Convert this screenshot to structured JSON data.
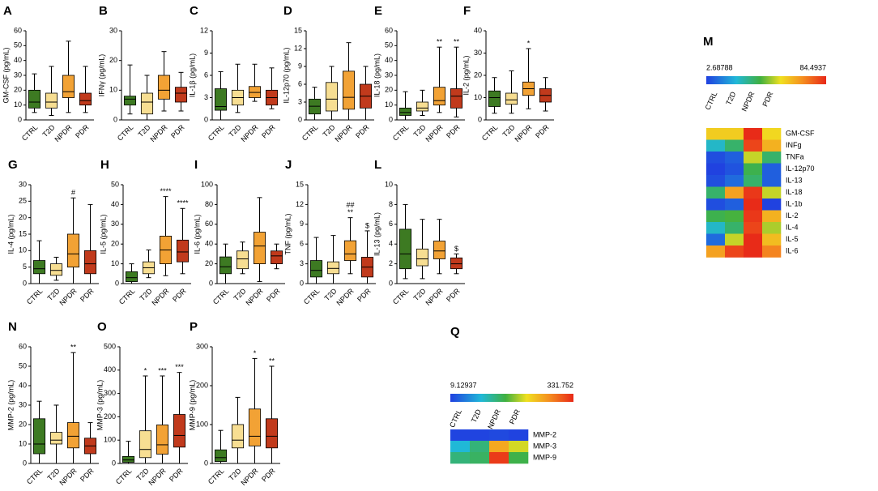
{
  "chart_data": [
    {
      "type": "box",
      "label": "A",
      "ylabel": "GM-CSF (pg/mL)",
      "categories": [
        "CTRL",
        "T2D",
        "NPDR",
        "PDR"
      ],
      "colors": [
        "#3d7a22",
        "#f7de92",
        "#f2a235",
        "#c13a1c"
      ],
      "ylim": [
        0,
        60
      ],
      "yticks": [
        0,
        10,
        20,
        30,
        40,
        50,
        60
      ],
      "boxes": [
        {
          "min": 5,
          "q1": 8,
          "median": 12,
          "q3": 20,
          "max": 31
        },
        {
          "min": 3,
          "q1": 8,
          "median": 12,
          "q3": 18,
          "max": 36
        },
        {
          "min": 5,
          "q1": 15,
          "median": 19,
          "q3": 30,
          "max": 53
        },
        {
          "min": 5,
          "q1": 10,
          "median": 13,
          "q3": 18,
          "max": 36
        }
      ],
      "annotations": [
        null,
        null,
        null,
        null
      ]
    },
    {
      "type": "box",
      "label": "B",
      "ylabel": "IFNγ (pg/mL)",
      "categories": [
        "CTRL",
        "T2D",
        "NPDR",
        "PDR"
      ],
      "colors": [
        "#3d7a22",
        "#f7de92",
        "#f2a235",
        "#c13a1c"
      ],
      "ylim": [
        0,
        30
      ],
      "yticks": [
        0,
        10,
        20,
        30
      ],
      "boxes": [
        {
          "min": 2,
          "q1": 5,
          "median": 7,
          "q3": 8,
          "max": 18.5
        },
        {
          "min": 0,
          "q1": 2,
          "median": 6,
          "q3": 9,
          "max": 15
        },
        {
          "min": 3,
          "q1": 7,
          "median": 10,
          "q3": 15,
          "max": 23
        },
        {
          "min": 3,
          "q1": 6,
          "median": 9,
          "q3": 11,
          "max": 16
        }
      ],
      "annotations": [
        null,
        null,
        null,
        null
      ]
    },
    {
      "type": "box",
      "label": "C",
      "ylabel": "IL-1β (pg/mL)",
      "categories": [
        "CTRL",
        "T2D",
        "NPDR",
        "PDR"
      ],
      "colors": [
        "#3d7a22",
        "#f7de92",
        "#f2a235",
        "#c13a1c"
      ],
      "ylim": [
        0,
        12
      ],
      "yticks": [
        0,
        3,
        6,
        9,
        12
      ],
      "boxes": [
        {
          "min": 0,
          "q1": 1.3,
          "median": 1.8,
          "q3": 4.2,
          "max": 6.5
        },
        {
          "min": 1,
          "q1": 2,
          "median": 3,
          "q3": 4,
          "max": 7.5
        },
        {
          "min": 2.5,
          "q1": 3,
          "median": 3.7,
          "q3": 4.5,
          "max": 7.5
        },
        {
          "min": 1.5,
          "q1": 2,
          "median": 3,
          "q3": 4,
          "max": 7
        }
      ],
      "annotations": [
        null,
        null,
        null,
        null
      ]
    },
    {
      "type": "box",
      "label": "D",
      "ylabel": "IL-12p70 (pg/mL)",
      "categories": [
        "CTRL",
        "T2D",
        "NPDR",
        "PDR"
      ],
      "colors": [
        "#3d7a22",
        "#f7de92",
        "#f2a235",
        "#c13a1c"
      ],
      "ylim": [
        0,
        15
      ],
      "yticks": [
        0,
        3,
        6,
        9,
        12,
        15
      ],
      "boxes": [
        {
          "min": 0,
          "q1": 1,
          "median": 2.3,
          "q3": 3.5,
          "max": 5.5
        },
        {
          "min": 0,
          "q1": 1.5,
          "median": 3.5,
          "q3": 6.3,
          "max": 9
        },
        {
          "min": 0,
          "q1": 1.8,
          "median": 3.8,
          "q3": 8.2,
          "max": 13
        },
        {
          "min": 0,
          "q1": 2,
          "median": 4,
          "q3": 6,
          "max": 9
        }
      ],
      "annotations": [
        null,
        null,
        null,
        null
      ]
    },
    {
      "type": "box",
      "label": "E",
      "ylabel": "IL-18 (pg/mL)",
      "categories": [
        "CTRL",
        "T2D",
        "NPDR",
        "PDR"
      ],
      "colors": [
        "#3d7a22",
        "#f7de92",
        "#f2a235",
        "#c13a1c"
      ],
      "ylim": [
        0,
        60
      ],
      "yticks": [
        0,
        10,
        20,
        30,
        40,
        50,
        60
      ],
      "boxes": [
        {
          "min": 0,
          "q1": 3,
          "median": 5,
          "q3": 8,
          "max": 19
        },
        {
          "min": 3,
          "q1": 6,
          "median": 8,
          "q3": 12,
          "max": 20
        },
        {
          "min": 5,
          "q1": 10,
          "median": 13,
          "q3": 22,
          "max": 49
        },
        {
          "min": 2,
          "q1": 8,
          "median": 16,
          "q3": 21,
          "max": 49
        }
      ],
      "annotations": [
        null,
        null,
        "**",
        "**"
      ]
    },
    {
      "type": "box",
      "label": "F",
      "ylabel": "IL-2 (pg/mL)",
      "categories": [
        "CTRL",
        "T2D",
        "NPDR",
        "PDR"
      ],
      "colors": [
        "#3d7a22",
        "#f7de92",
        "#f2a235",
        "#c13a1c"
      ],
      "ylim": [
        0,
        40
      ],
      "yticks": [
        0,
        10,
        20,
        30,
        40
      ],
      "boxes": [
        {
          "min": 3,
          "q1": 6,
          "median": 10,
          "q3": 13,
          "max": 19
        },
        {
          "min": 3,
          "q1": 7,
          "median": 9,
          "q3": 12,
          "max": 22
        },
        {
          "min": 5,
          "q1": 11,
          "median": 14,
          "q3": 17,
          "max": 32
        },
        {
          "min": 4,
          "q1": 8,
          "median": 11,
          "q3": 14,
          "max": 19
        }
      ],
      "annotations": [
        null,
        null,
        "*",
        null
      ]
    },
    {
      "type": "box",
      "label": "G",
      "ylabel": "IL-4 (pg/mL)",
      "categories": [
        "CTRL",
        "T2D",
        "NPDR",
        "PDR"
      ],
      "colors": [
        "#3d7a22",
        "#f7de92",
        "#f2a235",
        "#c13a1c"
      ],
      "ylim": [
        0,
        30
      ],
      "yticks": [
        0,
        5,
        10,
        15,
        20,
        25,
        30
      ],
      "boxes": [
        {
          "min": 0,
          "q1": 3,
          "median": 4.5,
          "q3": 7,
          "max": 13
        },
        {
          "min": 1,
          "q1": 2.5,
          "median": 4,
          "q3": 6,
          "max": 8
        },
        {
          "min": 0,
          "q1": 5,
          "median": 9,
          "q3": 15,
          "max": 26
        },
        {
          "min": 0,
          "q1": 3,
          "median": 6,
          "q3": 10,
          "max": 24
        }
      ],
      "annotations": [
        null,
        null,
        "#",
        null
      ]
    },
    {
      "type": "box",
      "label": "H",
      "ylabel": "IL-5 (pg/mL)",
      "categories": [
        "CTRL",
        "T2D",
        "NPDR",
        "PDR"
      ],
      "colors": [
        "#3d7a22",
        "#f7de92",
        "#f2a235",
        "#c13a1c"
      ],
      "ylim": [
        0,
        50
      ],
      "yticks": [
        0,
        10,
        20,
        30,
        40,
        50
      ],
      "boxes": [
        {
          "min": 0,
          "q1": 1,
          "median": 3,
          "q3": 6,
          "max": 10
        },
        {
          "min": 3,
          "q1": 5,
          "median": 8,
          "q3": 11,
          "max": 17
        },
        {
          "min": 4,
          "q1": 10,
          "median": 17,
          "q3": 24,
          "max": 44
        },
        {
          "min": 5,
          "q1": 11,
          "median": 16,
          "q3": 22,
          "max": 38
        }
      ],
      "annotations": [
        null,
        null,
        "****",
        "****"
      ]
    },
    {
      "type": "box",
      "label": "I",
      "ylabel": "IL-6 (pg/mL)",
      "categories": [
        "CTRL",
        "T2D",
        "NPDR",
        "PDR"
      ],
      "colors": [
        "#3d7a22",
        "#f7de92",
        "#f2a235",
        "#c13a1c"
      ],
      "ylim": [
        0,
        100
      ],
      "yticks": [
        0,
        20,
        40,
        60,
        80,
        100
      ],
      "boxes": [
        {
          "min": 0,
          "q1": 10,
          "median": 17,
          "q3": 27,
          "max": 40
        },
        {
          "min": 10,
          "q1": 15,
          "median": 25,
          "q3": 33,
          "max": 42
        },
        {
          "min": 2,
          "q1": 20,
          "median": 38,
          "q3": 52,
          "max": 87
        },
        {
          "min": 15,
          "q1": 20,
          "median": 28,
          "q3": 33,
          "max": 40
        }
      ],
      "annotations": [
        null,
        null,
        null,
        null
      ]
    },
    {
      "type": "box",
      "label": "J",
      "ylabel": "TNF (pg/mL)",
      "categories": [
        "CTRL",
        "T2D",
        "NPDR",
        "PDR"
      ],
      "colors": [
        "#3d7a22",
        "#f7de92",
        "#f2a235",
        "#c13a1c"
      ],
      "ylim": [
        0,
        15
      ],
      "yticks": [
        0,
        3,
        6,
        9,
        12,
        15
      ],
      "boxes": [
        {
          "min": 0,
          "q1": 1,
          "median": 2,
          "q3": 3.5,
          "max": 7
        },
        {
          "min": 0,
          "q1": 1.5,
          "median": 2.3,
          "q3": 3.3,
          "max": 7.3
        },
        {
          "min": 1.5,
          "q1": 3.5,
          "median": 4.5,
          "q3": 6.5,
          "max": 10
        },
        {
          "min": 0,
          "q1": 1,
          "median": 2.5,
          "q3": 4,
          "max": 8
        }
      ],
      "annotations": [
        null,
        null,
        "**",
        "$"
      ],
      "annotations_top": [
        null,
        null,
        "##",
        null
      ]
    },
    {
      "type": "box",
      "label": "L",
      "ylabel": "IL-13 (pg/mL)",
      "categories": [
        "CTRL",
        "T2D",
        "NPDR",
        "PDR"
      ],
      "colors": [
        "#3d7a22",
        "#f7de92",
        "#f2a235",
        "#c13a1c"
      ],
      "ylim": [
        0,
        10
      ],
      "yticks": [
        0,
        2,
        4,
        6,
        8,
        10
      ],
      "boxes": [
        {
          "min": 0.5,
          "q1": 1.5,
          "median": 3,
          "q3": 5.5,
          "max": 8
        },
        {
          "min": 0.5,
          "q1": 1.8,
          "median": 2.5,
          "q3": 3.5,
          "max": 6.5
        },
        {
          "min": 1,
          "q1": 2.5,
          "median": 3.3,
          "q3": 4.3,
          "max": 6.5
        },
        {
          "min": 1,
          "q1": 1.5,
          "median": 2,
          "q3": 2.6,
          "max": 3
        }
      ],
      "annotations": [
        null,
        null,
        null,
        "$"
      ]
    },
    {
      "type": "box",
      "label": "N",
      "ylabel": "MMP-2 (pg/mL)",
      "categories": [
        "CTRL",
        "T2D",
        "NPDR",
        "PDR"
      ],
      "colors": [
        "#3d7a22",
        "#f7de92",
        "#f2a235",
        "#c13a1c"
      ],
      "ylim": [
        0,
        60
      ],
      "yticks": [
        0,
        10,
        20,
        30,
        40,
        50,
        60
      ],
      "boxes": [
        {
          "min": 0,
          "q1": 5,
          "median": 10,
          "q3": 23,
          "max": 32
        },
        {
          "min": 0,
          "q1": 10,
          "median": 12,
          "q3": 16,
          "max": 30
        },
        {
          "min": 0,
          "q1": 8,
          "median": 14,
          "q3": 21,
          "max": 57
        },
        {
          "min": 0,
          "q1": 5,
          "median": 9,
          "q3": 13,
          "max": 21
        }
      ],
      "annotations": [
        null,
        null,
        "**",
        null
      ]
    },
    {
      "type": "box",
      "label": "O",
      "ylabel": "MMP-3 (pg/mL)",
      "categories": [
        "CTRL",
        "T2D",
        "NPDR",
        "PDR"
      ],
      "colors": [
        "#3d7a22",
        "#f7de92",
        "#f2a235",
        "#c13a1c"
      ],
      "ylim": [
        0,
        500
      ],
      "yticks": [
        0,
        100,
        200,
        300,
        400,
        500
      ],
      "boxes": [
        {
          "min": 0,
          "q1": 5,
          "median": 15,
          "q3": 30,
          "max": 95
        },
        {
          "min": 0,
          "q1": 25,
          "median": 60,
          "q3": 140,
          "max": 375
        },
        {
          "min": 0,
          "q1": 40,
          "median": 80,
          "q3": 165,
          "max": 375
        },
        {
          "min": 0,
          "q1": 70,
          "median": 120,
          "q3": 210,
          "max": 390
        }
      ],
      "annotations": [
        null,
        "*",
        "***",
        "***"
      ]
    },
    {
      "type": "box",
      "label": "P",
      "ylabel": "MMP-9 (pg/mL)",
      "categories": [
        "CTRL",
        "T2D",
        "NPDR",
        "PDR"
      ],
      "colors": [
        "#3d7a22",
        "#f7de92",
        "#f2a235",
        "#c13a1c"
      ],
      "ylim": [
        0,
        300
      ],
      "yticks": [
        0,
        100,
        200,
        300
      ],
      "boxes": [
        {
          "min": 0,
          "q1": 5,
          "median": 15,
          "q3": 35,
          "max": 85
        },
        {
          "min": 0,
          "q1": 40,
          "median": 60,
          "q3": 100,
          "max": 170
        },
        {
          "min": 0,
          "q1": 45,
          "median": 70,
          "q3": 140,
          "max": 270
        },
        {
          "min": 0,
          "q1": 40,
          "median": 70,
          "q3": 115,
          "max": 250
        }
      ],
      "annotations": [
        null,
        null,
        "*",
        "**"
      ]
    },
    {
      "type": "heatmap",
      "label": "M",
      "scale_min": 2.68788,
      "scale_max": 84.4937,
      "columns": [
        "CTRL",
        "T2D",
        "NPDR",
        "PDR"
      ],
      "rows": [
        "GM-CSF",
        "INFg",
        "TNFa",
        "IL-12p70",
        "IL-13",
        "IL-18",
        "IL-1b",
        "IL-2",
        "IL-4",
        "IL-5",
        "IL-6"
      ],
      "values": [
        [
          57,
          57,
          84,
          55
        ],
        [
          25,
          35,
          80,
          62
        ],
        [
          5,
          8,
          50,
          35
        ],
        [
          3,
          6,
          38,
          8
        ],
        [
          5,
          10,
          35,
          8
        ],
        [
          35,
          65,
          82,
          50
        ],
        [
          5,
          8,
          84,
          3
        ],
        [
          38,
          40,
          82,
          62
        ],
        [
          25,
          35,
          80,
          48
        ],
        [
          10,
          50,
          84,
          60
        ],
        [
          65,
          80,
          84,
          70
        ]
      ]
    },
    {
      "type": "heatmap",
      "label": "Q",
      "scale_min": 9.12937,
      "scale_max": 331.752,
      "columns": [
        "CTRL",
        "T2D",
        "NPDR",
        "PDR"
      ],
      "rows": [
        "MMP-2",
        "MMP-3",
        "MMP-9"
      ],
      "values": [
        [
          12,
          12,
          15,
          11
        ],
        [
          90,
          130,
          250,
          200
        ],
        [
          130,
          140,
          320,
          150
        ]
      ]
    }
  ]
}
